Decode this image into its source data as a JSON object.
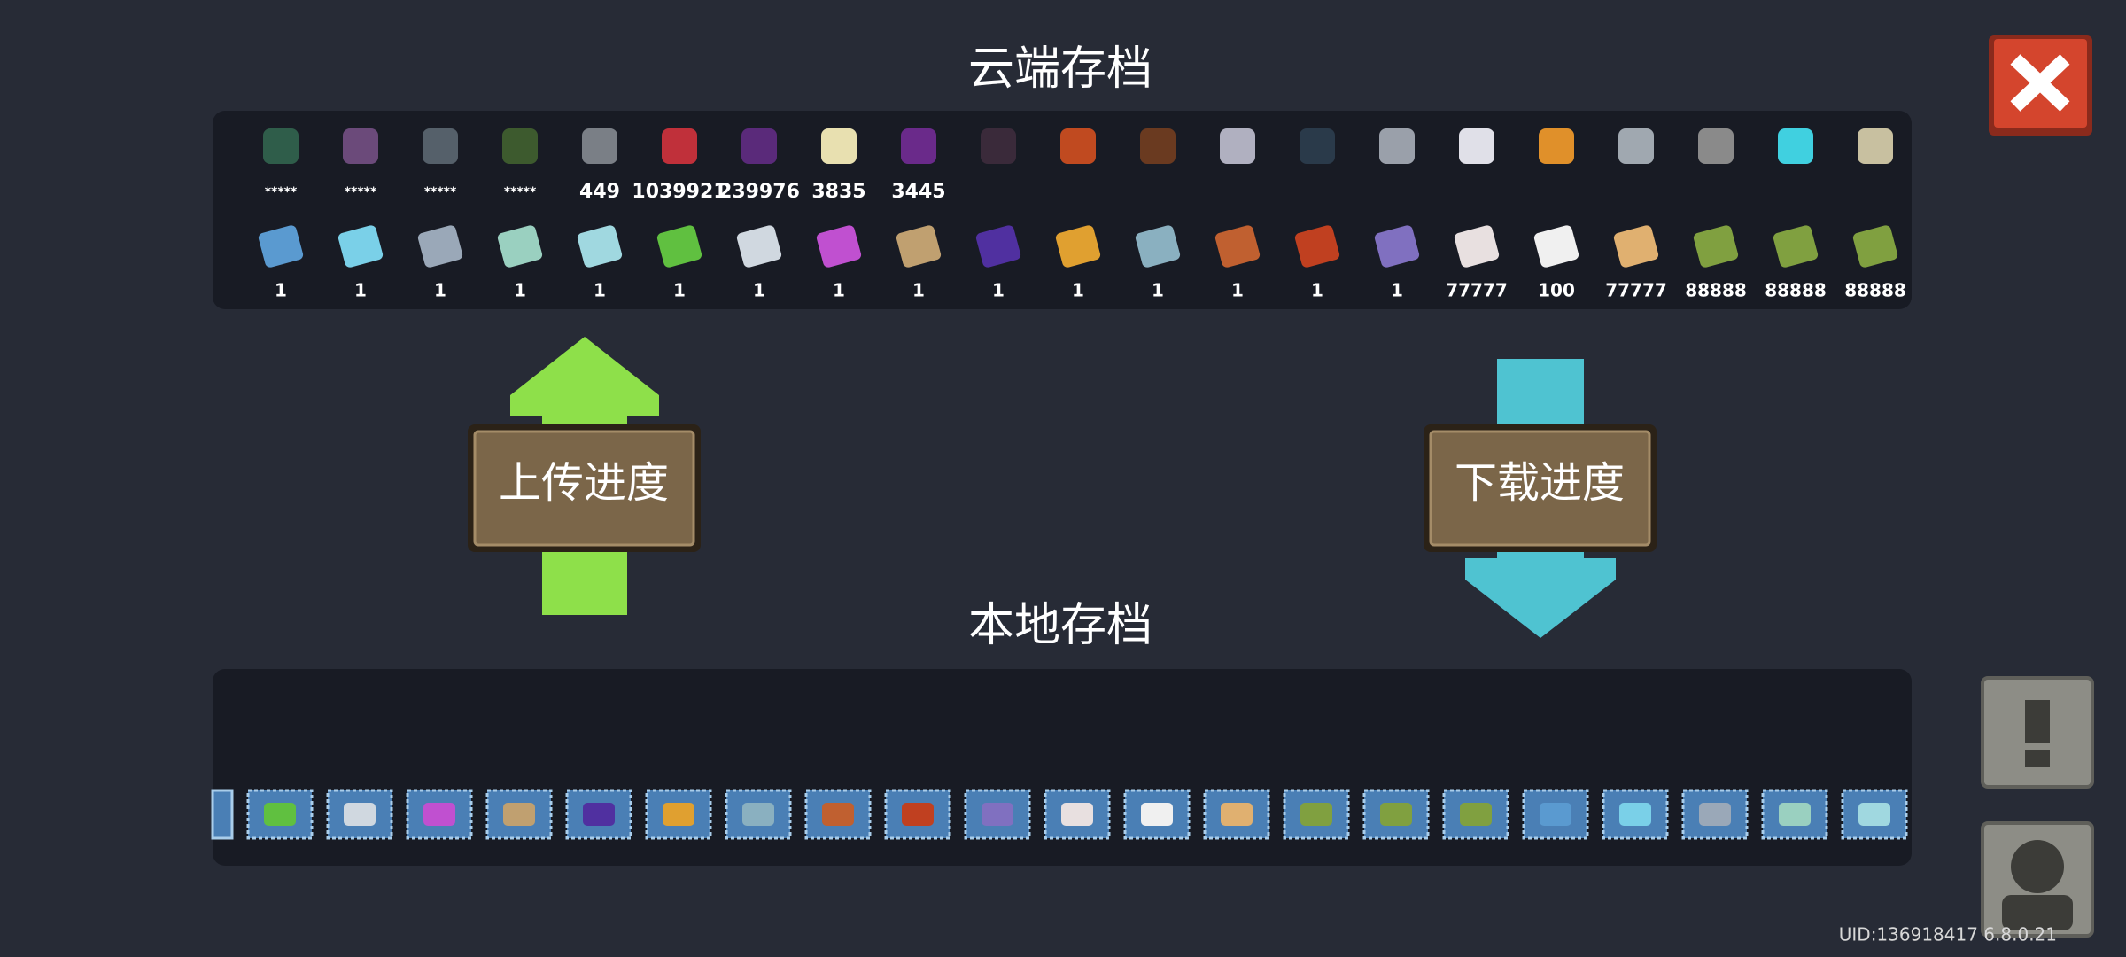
{
  "title_cloud": "云端存档",
  "cloud": {
    "top_labels": [
      "*****",
      "*****",
      "*****",
      "*****",
      "449",
      "1039921",
      "239976",
      "3835",
      "3445"
    ],
    "bottom_labels": [
      "1",
      "1",
      "1",
      "1",
      "1",
      "1",
      "1",
      "1",
      "1",
      "1",
      "1",
      "1",
      "1",
      "1",
      "1",
      "77777",
      "100",
      "77777",
      "88888",
      "88888",
      "88888"
    ]
  },
  "upload_button": "上传进度",
  "download_button": "下载进度",
  "title_local": "本地存档",
  "footer": {
    "uid": "UID:136918417 6.8.0.21"
  }
}
